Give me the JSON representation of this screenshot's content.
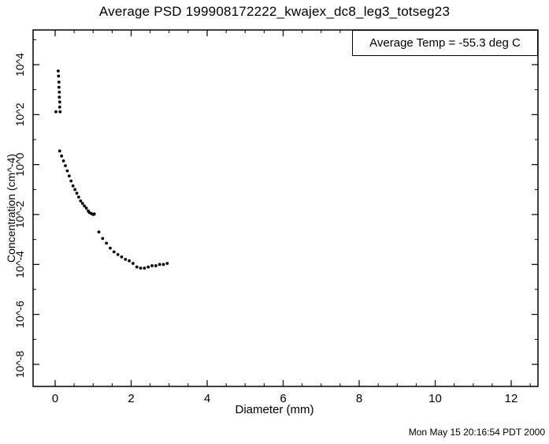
{
  "page": {
    "timestamp": "Mon May 15 20:16:54 PDT 2000",
    "background": "#ffffff",
    "foreground": "#000000"
  },
  "chart_data": {
    "type": "scatter",
    "title": "Average PSD 199908172222_kwajex_dc8_leg3_totseg23",
    "annotation": "Average Temp = -55.3 deg C",
    "xlabel": "Diameter (mm)",
    "ylabel": "Concentration (cm^-4)",
    "xlim": [
      0,
      12.7
    ],
    "ylog": true,
    "ylim_exponents": [
      -8.9,
      5.4
    ],
    "grid": false,
    "legend": "none",
    "marker": {
      "shape": "circle",
      "color": "#000000",
      "radius": 1.9
    },
    "xticks": [
      {
        "v": 0,
        "label": "0"
      },
      {
        "v": 2,
        "label": "2"
      },
      {
        "v": 4,
        "label": "4"
      },
      {
        "v": 6,
        "label": "6"
      },
      {
        "v": 8,
        "label": "8"
      },
      {
        "v": 10,
        "label": "10"
      },
      {
        "v": 12,
        "label": "12"
      }
    ],
    "yticks": [
      {
        "exp": 4,
        "label": "10^4"
      },
      {
        "exp": 2,
        "label": "10^2"
      },
      {
        "exp": 0,
        "label": "10^0"
      },
      {
        "exp": -2,
        "label": "10^-2"
      },
      {
        "exp": -4,
        "label": "10^-4"
      },
      {
        "exp": -6,
        "label": "10^-6"
      },
      {
        "exp": -8,
        "label": "10^-8"
      }
    ],
    "points": [
      [
        0.02,
        130
      ],
      [
        0.08,
        5600
      ],
      [
        0.09,
        3500
      ],
      [
        0.1,
        2000
      ],
      [
        0.1,
        1250
      ],
      [
        0.11,
        790
      ],
      [
        0.11,
        500
      ],
      [
        0.12,
        320
      ],
      [
        0.12,
        200
      ],
      [
        0.13,
        130
      ],
      [
        0.12,
        3.5
      ],
      [
        0.17,
        2.2
      ],
      [
        0.22,
        1.4
      ],
      [
        0.27,
        0.9
      ],
      [
        0.32,
        0.56
      ],
      [
        0.37,
        0.35
      ],
      [
        0.42,
        0.22
      ],
      [
        0.47,
        0.14
      ],
      [
        0.52,
        0.1
      ],
      [
        0.57,
        0.071
      ],
      [
        0.62,
        0.05
      ],
      [
        0.67,
        0.035
      ],
      [
        0.72,
        0.028
      ],
      [
        0.77,
        0.022
      ],
      [
        0.82,
        0.018
      ],
      [
        0.87,
        0.014
      ],
      [
        0.9,
        0.012
      ],
      [
        0.95,
        0.011
      ],
      [
        1.0,
        0.01
      ],
      [
        1.03,
        0.0105
      ],
      [
        1.15,
        0.002
      ],
      [
        1.25,
        0.0011
      ],
      [
        1.35,
        0.00071
      ],
      [
        1.45,
        0.00045
      ],
      [
        1.55,
        0.00032
      ],
      [
        1.65,
        0.00025
      ],
      [
        1.75,
        0.0002
      ],
      [
        1.85,
        0.00016
      ],
      [
        1.95,
        0.00014
      ],
      [
        2.05,
        0.00011
      ],
      [
        2.15,
        7.9e-05
      ],
      [
        2.25,
        7.1e-05
      ],
      [
        2.35,
        7.1e-05
      ],
      [
        2.45,
        7.9e-05
      ],
      [
        2.55,
        8.9e-05
      ],
      [
        2.65,
        8.9e-05
      ],
      [
        2.75,
        0.0001
      ],
      [
        2.85,
        0.0001
      ],
      [
        2.95,
        0.00011
      ]
    ]
  }
}
